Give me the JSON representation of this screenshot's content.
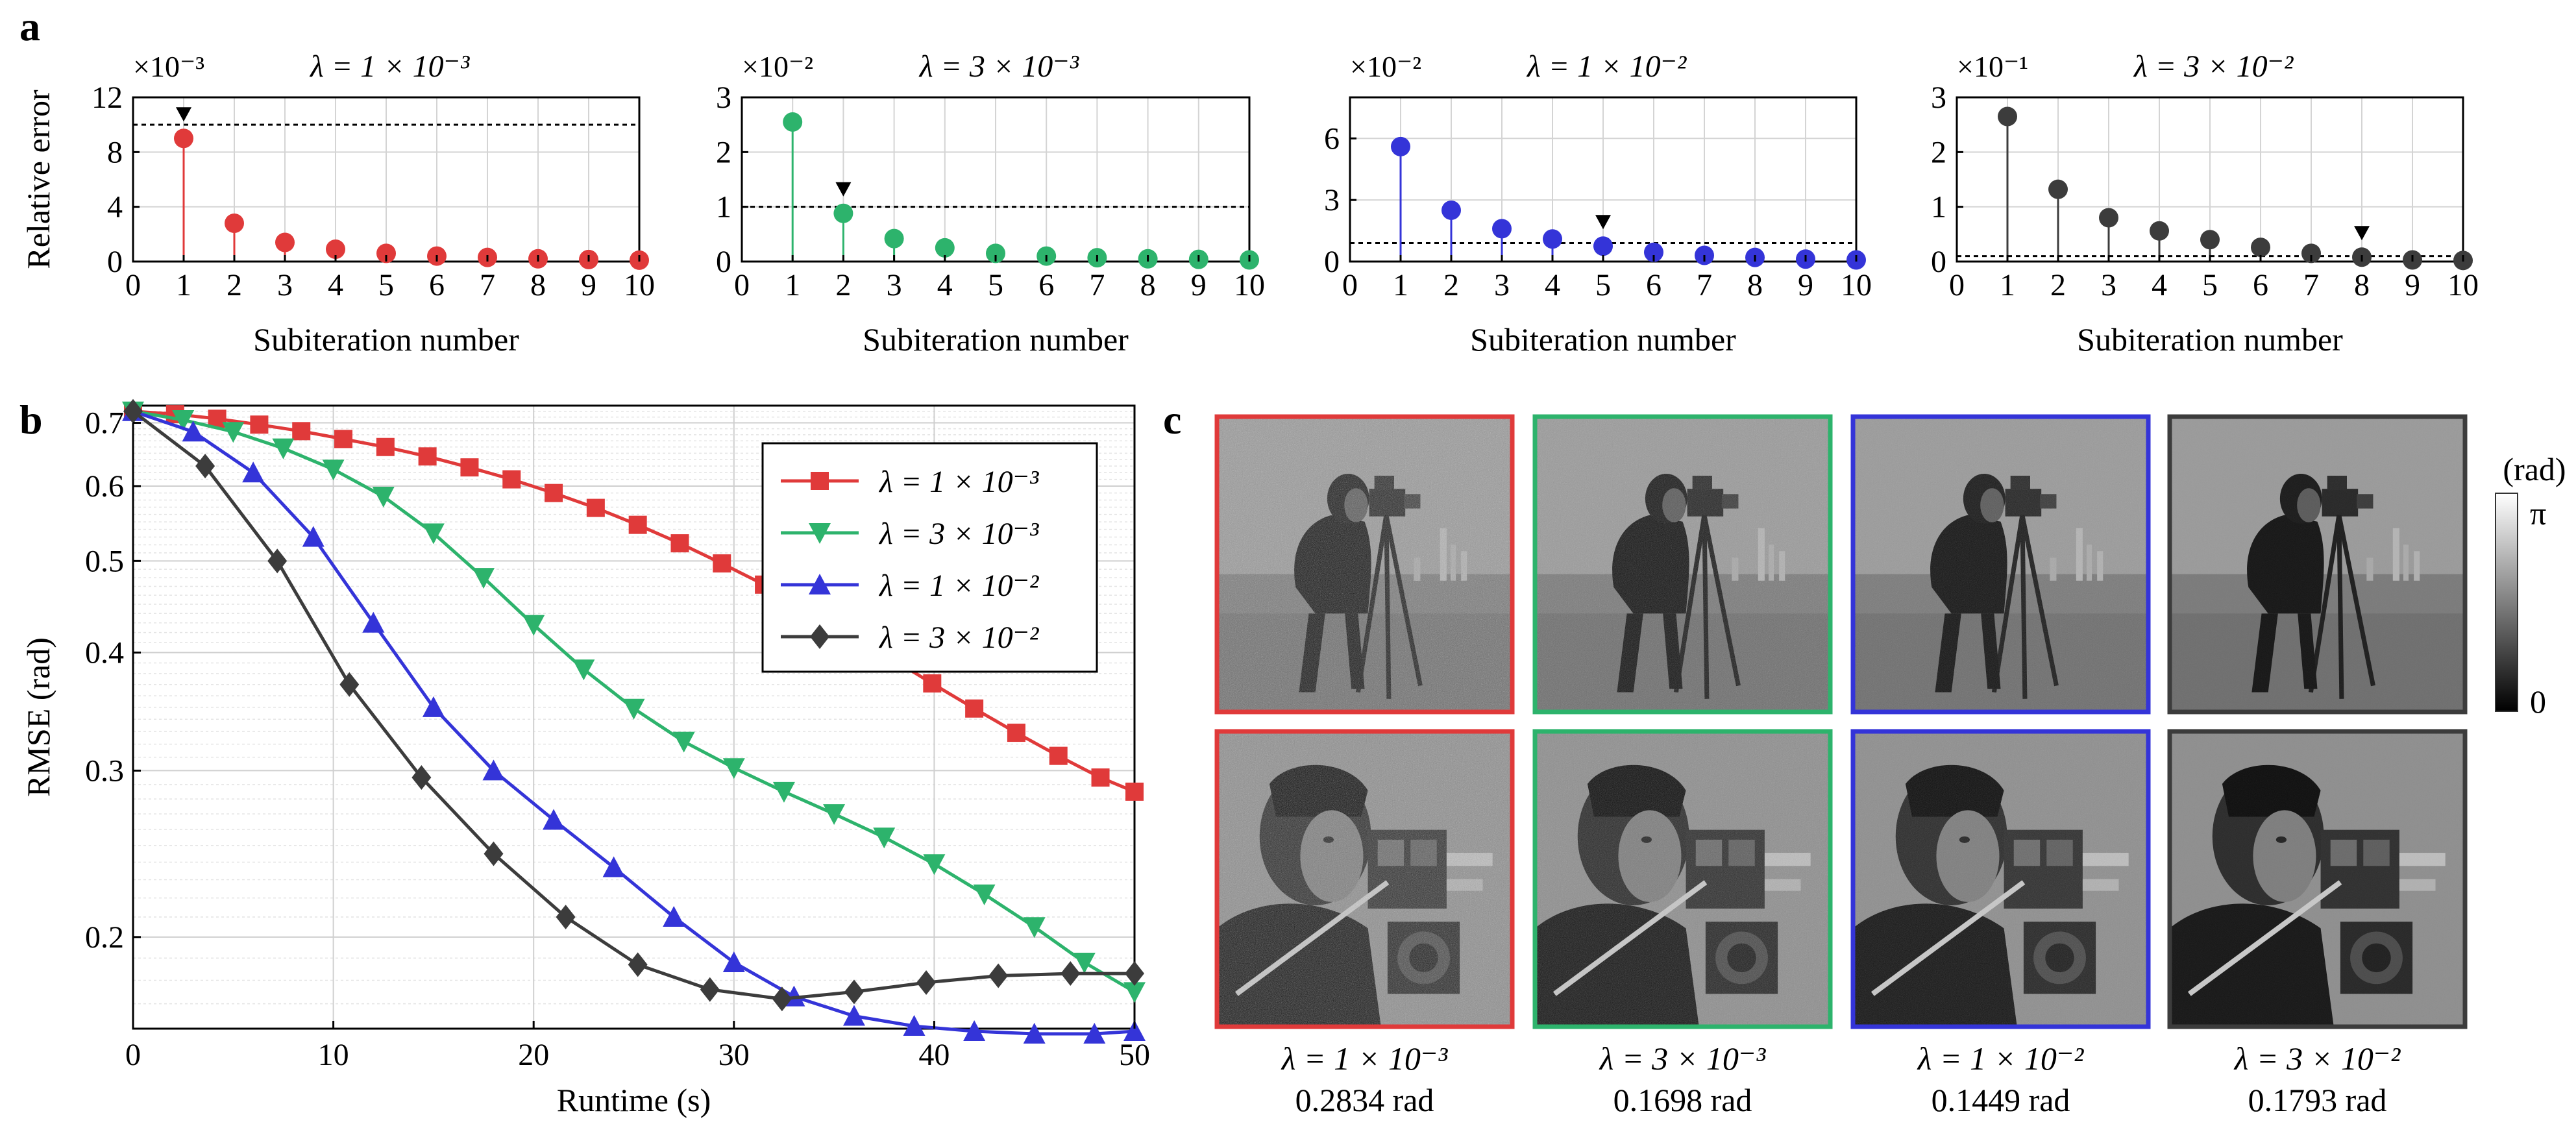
{
  "panel_labels": {
    "a": "a",
    "b": "b",
    "c": "c"
  },
  "colors": {
    "red": "#e03a3a",
    "green": "#2db36c",
    "blue": "#3434d8",
    "dark": "#3c3c3c"
  },
  "chart_data": [
    {
      "type": "stem",
      "panel": "a",
      "title": "λ = 1 × 10⁻³",
      "multiplier": "×10⁻³",
      "xlabel": "Subiteration number",
      "ylabel": "Relative error",
      "x": [
        1,
        2,
        3,
        4,
        5,
        6,
        7,
        8,
        9,
        10
      ],
      "values": [
        9.0,
        2.8,
        1.4,
        0.9,
        0.6,
        0.4,
        0.3,
        0.2,
        0.15,
        0.1
      ],
      "xlim": [
        0,
        10
      ],
      "ylim": [
        0,
        12
      ],
      "xticks": [
        0,
        1,
        2,
        3,
        4,
        5,
        6,
        7,
        8,
        9,
        10
      ],
      "yticks": [
        0,
        4,
        8,
        12
      ],
      "threshold": 10,
      "marker_index": 1,
      "color": "#e03a3a",
      "grid": true
    },
    {
      "type": "stem",
      "panel": "a",
      "title": "λ = 3 × 10⁻³",
      "multiplier": "×10⁻²",
      "xlabel": "Subiteration number",
      "ylabel": "",
      "x": [
        1,
        2,
        3,
        4,
        5,
        6,
        7,
        8,
        9,
        10
      ],
      "values": [
        2.55,
        0.88,
        0.42,
        0.25,
        0.15,
        0.1,
        0.07,
        0.05,
        0.04,
        0.03
      ],
      "xlim": [
        0,
        10
      ],
      "ylim": [
        0,
        3
      ],
      "xticks": [
        0,
        1,
        2,
        3,
        4,
        5,
        6,
        7,
        8,
        9,
        10
      ],
      "yticks": [
        0,
        1,
        2,
        3
      ],
      "threshold": 1,
      "marker_index": 2,
      "color": "#2db36c",
      "grid": true
    },
    {
      "type": "stem",
      "panel": "a",
      "title": "λ = 1 × 10⁻²",
      "multiplier": "×10⁻²",
      "xlabel": "Subiteration number",
      "ylabel": "",
      "x": [
        1,
        2,
        3,
        4,
        5,
        6,
        7,
        8,
        9,
        10
      ],
      "values": [
        5.6,
        2.5,
        1.6,
        1.1,
        0.75,
        0.45,
        0.3,
        0.2,
        0.12,
        0.08
      ],
      "xlim": [
        0,
        10
      ],
      "ylim": [
        0,
        8
      ],
      "xticks": [
        0,
        1,
        2,
        3,
        4,
        5,
        6,
        7,
        8,
        9,
        10
      ],
      "yticks": [
        0,
        3,
        6
      ],
      "threshold": 0.9,
      "marker_index": 5,
      "color": "#3434d8",
      "grid": true
    },
    {
      "type": "stem",
      "panel": "a",
      "title": "λ = 3 × 10⁻²",
      "multiplier": "×10⁻¹",
      "xlabel": "Subiteration number",
      "ylabel": "",
      "x": [
        1,
        2,
        3,
        4,
        5,
        6,
        7,
        8,
        9,
        10
      ],
      "values": [
        2.65,
        1.32,
        0.8,
        0.56,
        0.4,
        0.26,
        0.15,
        0.08,
        0.03,
        0.02
      ],
      "xlim": [
        0,
        10
      ],
      "ylim": [
        0,
        3
      ],
      "xticks": [
        0,
        1,
        2,
        3,
        4,
        5,
        6,
        7,
        8,
        9,
        10
      ],
      "yticks": [
        0,
        1,
        2,
        3
      ],
      "threshold": 0.1,
      "marker_index": 8,
      "color": "#3c3c3c",
      "grid": true
    },
    {
      "type": "line",
      "panel": "b",
      "xlabel": "Runtime (s)",
      "ylabel": "RMSE (rad)",
      "xlim": [
        0,
        50
      ],
      "ylim": [
        0.16,
        0.73
      ],
      "yscale": "log",
      "xticks": [
        0,
        10,
        20,
        30,
        40,
        50
      ],
      "yticks": [
        0.2,
        0.3,
        0.4,
        0.5,
        0.6,
        0.7
      ],
      "grid": true,
      "legend": "top-right",
      "series": [
        {
          "name": "λ = 1 × 10⁻³",
          "color": "#e03a3a",
          "marker": "square",
          "x": [
            0,
            2.1,
            4.2,
            6.3,
            8.4,
            10.5,
            12.6,
            14.7,
            16.8,
            18.9,
            21,
            23.1,
            25.2,
            27.3,
            29.4,
            31.5,
            33.6,
            35.7,
            37.8,
            39.9,
            42,
            44.1,
            46.2,
            48.3,
            50
          ],
          "y": [
            0.72,
            0.715,
            0.707,
            0.697,
            0.686,
            0.673,
            0.66,
            0.645,
            0.628,
            0.61,
            0.59,
            0.569,
            0.546,
            0.522,
            0.497,
            0.472,
            0.446,
            0.42,
            0.395,
            0.371,
            0.349,
            0.329,
            0.311,
            0.295,
            0.285
          ]
        },
        {
          "name": "λ = 3 × 10⁻³",
          "color": "#2db36c",
          "marker": "triangle-down",
          "x": [
            0,
            2.5,
            5,
            7.5,
            10,
            12.5,
            15,
            17.5,
            20,
            22.5,
            25,
            27.5,
            30,
            32.5,
            35,
            37.5,
            40,
            42.5,
            45,
            47.5,
            50
          ],
          "y": [
            0.72,
            0.705,
            0.685,
            0.658,
            0.625,
            0.585,
            0.535,
            0.48,
            0.428,
            0.384,
            0.349,
            0.322,
            0.302,
            0.285,
            0.27,
            0.255,
            0.239,
            0.222,
            0.205,
            0.188,
            0.175
          ]
        },
        {
          "name": "λ = 1 × 10⁻²",
          "color": "#3434d8",
          "marker": "triangle-up",
          "x": [
            0,
            3,
            6,
            9,
            12,
            15,
            18,
            21,
            24,
            27,
            30,
            33,
            36,
            39,
            42,
            45,
            48,
            50
          ],
          "y": [
            0.72,
            0.685,
            0.62,
            0.53,
            0.43,
            0.35,
            0.3,
            0.266,
            0.237,
            0.21,
            0.188,
            0.173,
            0.165,
            0.161,
            0.159,
            0.158,
            0.158,
            0.159
          ]
        },
        {
          "name": "λ = 3 × 10⁻²",
          "color": "#3c3c3c",
          "marker": "diamond",
          "x": [
            0,
            3.6,
            7.2,
            10.8,
            14.4,
            18,
            21.6,
            25.2,
            28.8,
            32.4,
            36,
            39.6,
            43.2,
            46.8,
            50
          ],
          "y": [
            0.72,
            0.63,
            0.5,
            0.37,
            0.295,
            0.245,
            0.21,
            0.187,
            0.176,
            0.172,
            0.175,
            0.179,
            0.182,
            0.183,
            0.183
          ]
        }
      ]
    }
  ],
  "panel_c": {
    "colorbar_unit": "(rad)",
    "colorbar_max": "π",
    "colorbar_min": "0",
    "columns": [
      {
        "label": "λ = 1 × 10⁻³",
        "value": "0.2834 rad",
        "color": "#e03a3a",
        "noise": 0.55
      },
      {
        "label": "λ = 3 × 10⁻³",
        "value": "0.1698 rad",
        "color": "#2db36c",
        "noise": 0.35
      },
      {
        "label": "λ = 1 × 10⁻²",
        "value": "0.1449 rad",
        "color": "#3434d8",
        "noise": 0.22
      },
      {
        "label": "λ = 3 × 10⁻²",
        "value": "0.1793 rad",
        "color": "#3c3c3c",
        "noise": 0.08
      }
    ]
  }
}
